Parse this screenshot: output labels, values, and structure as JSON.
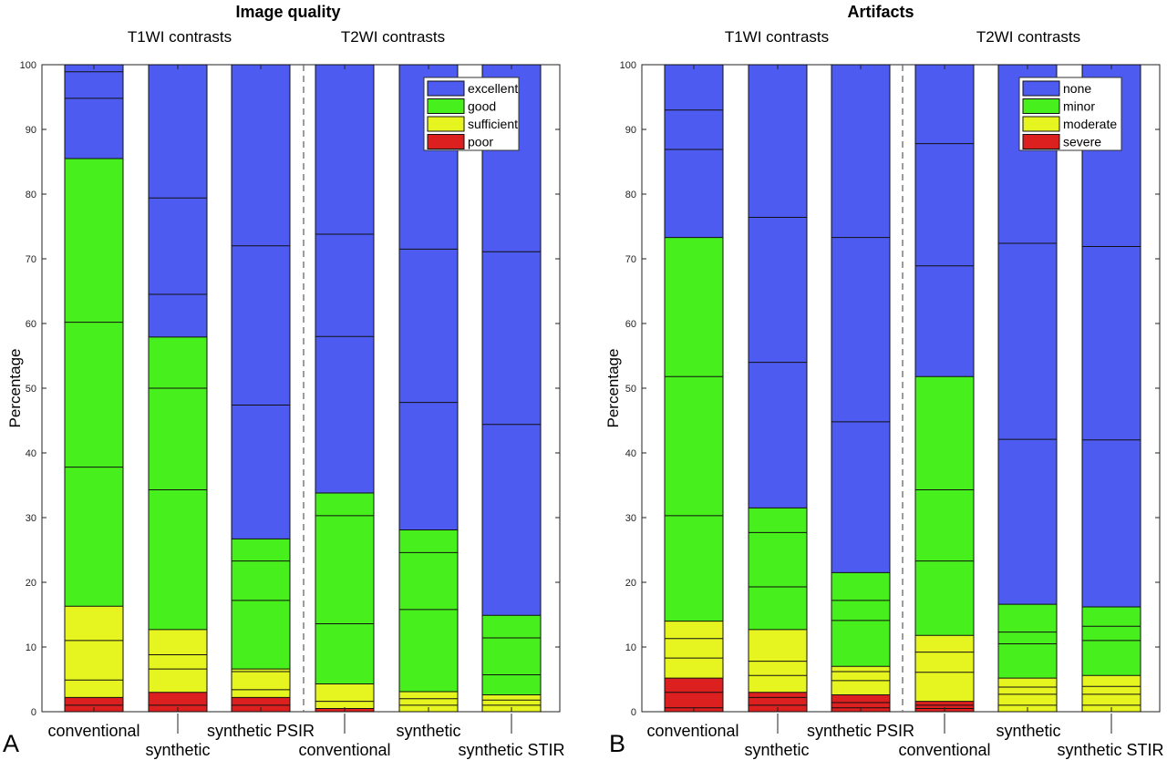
{
  "chart_data": [
    {
      "type": "bar",
      "stacked": true,
      "panel_label": "A",
      "title": "Image quality",
      "group_labels": [
        "T1WI contrasts",
        "T2WI contrasts"
      ],
      "ylabel": "Percentage",
      "ylim": [
        0,
        100
      ],
      "yticks": [
        0,
        10,
        20,
        30,
        40,
        50,
        60,
        70,
        80,
        90,
        100
      ],
      "categories": [
        "conventional",
        "synthetic",
        "synthetic PSIR",
        "conventional",
        "synthetic",
        "synthetic STIR"
      ],
      "legend": [
        {
          "name": "excellent",
          "color": "#4d5bf0"
        },
        {
          "name": "good",
          "color": "#47f01c"
        },
        {
          "name": "sufficient",
          "color": "#e6f51f"
        },
        {
          "name": "poor",
          "color": "#dc1f1f"
        }
      ],
      "legend_position": "top-right",
      "series_tops": [
        {
          "name": "poor",
          "values": [
            2.2,
            3.0,
            2.2,
            0.5,
            0.0,
            0.0
          ]
        },
        {
          "name": "sufficient",
          "values": [
            16.3,
            12.7,
            6.6,
            4.3,
            3.1,
            2.6
          ]
        },
        {
          "name": "good",
          "values": [
            85.5,
            57.9,
            26.7,
            33.8,
            28.1,
            14.9
          ]
        },
        {
          "name": "excellent",
          "values": [
            100,
            100,
            100,
            100,
            100,
            100
          ]
        }
      ],
      "divisions": [
        [
          1.0,
          2.2,
          4.9,
          11.0,
          16.3,
          37.8,
          60.2,
          85.5,
          94.8,
          98.9
        ],
        [
          1.0,
          3.0,
          6.6,
          8.8,
          12.7,
          34.3,
          50.0,
          57.9,
          64.5,
          79.4
        ],
        [
          1.0,
          2.2,
          3.4,
          6.2,
          6.6,
          17.2,
          23.3,
          26.7,
          47.4,
          72.0
        ],
        [
          0.5,
          1.6,
          4.3,
          13.6,
          30.3,
          33.8,
          58.0,
          73.8
        ],
        [
          1.0,
          2.0,
          3.1,
          15.8,
          24.6,
          28.1,
          47.8,
          71.5
        ],
        [
          1.0,
          1.8,
          2.6,
          5.7,
          11.4,
          14.9,
          44.4,
          71.1
        ]
      ]
    },
    {
      "type": "bar",
      "stacked": true,
      "panel_label": "B",
      "title": "Artifacts",
      "group_labels": [
        "T1WI contrasts",
        "T2WI contrasts"
      ],
      "ylabel": "Percentage",
      "ylim": [
        0,
        100
      ],
      "yticks": [
        0,
        10,
        20,
        30,
        40,
        50,
        60,
        70,
        80,
        90,
        100
      ],
      "categories": [
        "conventional",
        "synthetic",
        "synthetic PSIR",
        "conventional",
        "synthetic",
        "synthetic STIR"
      ],
      "legend": [
        {
          "name": "none",
          "color": "#4d5bf0"
        },
        {
          "name": "minor",
          "color": "#47f01c"
        },
        {
          "name": "moderate",
          "color": "#e6f51f"
        },
        {
          "name": "severe",
          "color": "#dc1f1f"
        }
      ],
      "legend_position": "top-right",
      "series_tops": [
        {
          "name": "severe",
          "values": [
            5.2,
            3.0,
            2.6,
            1.6,
            0.0,
            0.0
          ]
        },
        {
          "name": "moderate",
          "values": [
            14.0,
            12.7,
            7.0,
            11.8,
            5.2,
            5.6
          ]
        },
        {
          "name": "minor",
          "values": [
            73.3,
            31.5,
            21.5,
            51.8,
            16.6,
            16.2
          ]
        },
        {
          "name": "none",
          "values": [
            100,
            100,
            100,
            100,
            100,
            100
          ]
        }
      ],
      "divisions": [
        [
          0.6,
          3.0,
          5.2,
          8.3,
          11.3,
          14.0,
          30.3,
          51.8,
          73.3,
          86.9,
          93.0
        ],
        [
          1.0,
          2.2,
          3.0,
          5.6,
          7.8,
          12.7,
          19.3,
          27.7,
          31.5,
          54.0,
          76.4
        ],
        [
          0.6,
          1.4,
          2.6,
          4.8,
          6.2,
          7.0,
          14.1,
          17.2,
          21.5,
          44.8,
          73.3
        ],
        [
          0.5,
          1.0,
          1.6,
          6.1,
          9.2,
          11.8,
          23.3,
          34.3,
          51.8,
          68.9,
          87.8
        ],
        [
          1.0,
          2.7,
          3.8,
          5.2,
          10.5,
          12.3,
          16.6,
          42.1,
          72.4
        ],
        [
          1.0,
          2.7,
          3.9,
          5.6,
          11.0,
          13.2,
          16.2,
          42.0,
          71.9
        ]
      ]
    }
  ]
}
